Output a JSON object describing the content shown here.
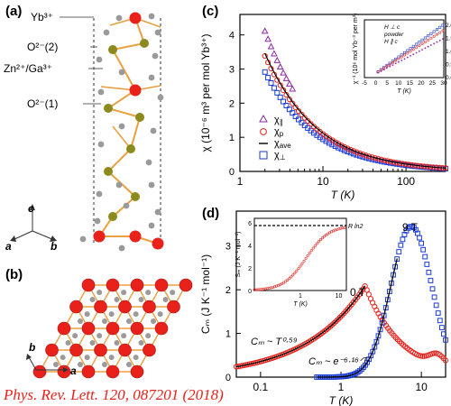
{
  "panels": {
    "a": "(a)",
    "b": "(b)",
    "c": "(c)",
    "d": "(d)"
  },
  "structure": {
    "labels": [
      "Yb³⁺",
      "O²⁻(2)",
      "Zn²⁺/Ga³⁺",
      "O²⁻(1)"
    ],
    "axes": {
      "c": "c",
      "a": "a",
      "b": "b"
    }
  },
  "lattice": {
    "axes": {
      "a": "a",
      "b": "b"
    }
  },
  "chi_plot": {
    "ylabel_main": "χ (10",
    "ylabel_exp": "-6",
    "ylabel_rest": " m",
    "ylabel_exp2": "3",
    "ylabel_rest2": " per mol Yb",
    "ylabel_exp3": "3+",
    "ylabel_end": ")",
    "xlabel": "T (K)",
    "yticks": [
      "0",
      "1",
      "2",
      "3",
      "4"
    ],
    "xticks": [
      "1",
      "10",
      "100"
    ],
    "legend": [
      "χ",
      "χ",
      "χ",
      "χ"
    ],
    "legend_sub": [
      "∥",
      "p",
      "ave",
      "⊥"
    ],
    "inset": {
      "ylabel": "χ⁻¹ (10⁶ mol Yb⁻³ per m³)",
      "xlabel": "T (K)",
      "xticks": [
        "-5",
        "0",
        "5",
        "10",
        "15",
        "20",
        "25",
        "30"
      ],
      "yticks": [
        "0.0",
        "0.5",
        "1.0",
        "1.5",
        "2.0"
      ],
      "legend": [
        "H ⊥ c",
        "powder",
        "H ∥ c"
      ]
    }
  },
  "cm_plot": {
    "ylabel": "C",
    "ylabel_sub": "m",
    "ylabel_rest": " (J K",
    "ylabel_e1": "-1",
    "ylabel_rest2": " mol",
    "ylabel_e2": "-1",
    "ylabel_end": ")",
    "xlabel": "T (K)",
    "yticks": [
      "0",
      "1",
      "2",
      "3"
    ],
    "xticks": [
      "0.1",
      "1",
      "10"
    ],
    "ann_0T": "0 T",
    "ann_9T": "9 T",
    "ann_power": "C",
    "ann_power_sub": "m",
    "ann_power_rest": " ~ T",
    "ann_power_exp": "0.59",
    "ann_exp": "C",
    "ann_exp_sub": "m",
    "ann_exp_rest": " ~ e",
    "ann_exp_exp": "-6.16/T",
    "inset": {
      "ylabel": "S",
      "ylabel_sub": "m",
      "ylabel_rest": " (J K⁻¹ mol⁻¹)",
      "xlabel": "T (K)",
      "yticks": [
        "0",
        "2",
        "4",
        "6"
      ],
      "xticks": [
        "1",
        "10"
      ],
      "rln2": "R ln2"
    }
  },
  "citation": "Phys. Rev. Lett. 120, 087201  (2018)",
  "colors": {
    "red": "#e8211b",
    "blue": "#1a3bd6",
    "purple": "#8a28a8",
    "olive": "#8c8a1c",
    "gray": "#9a9a9a",
    "bond": "#e8a040"
  }
}
